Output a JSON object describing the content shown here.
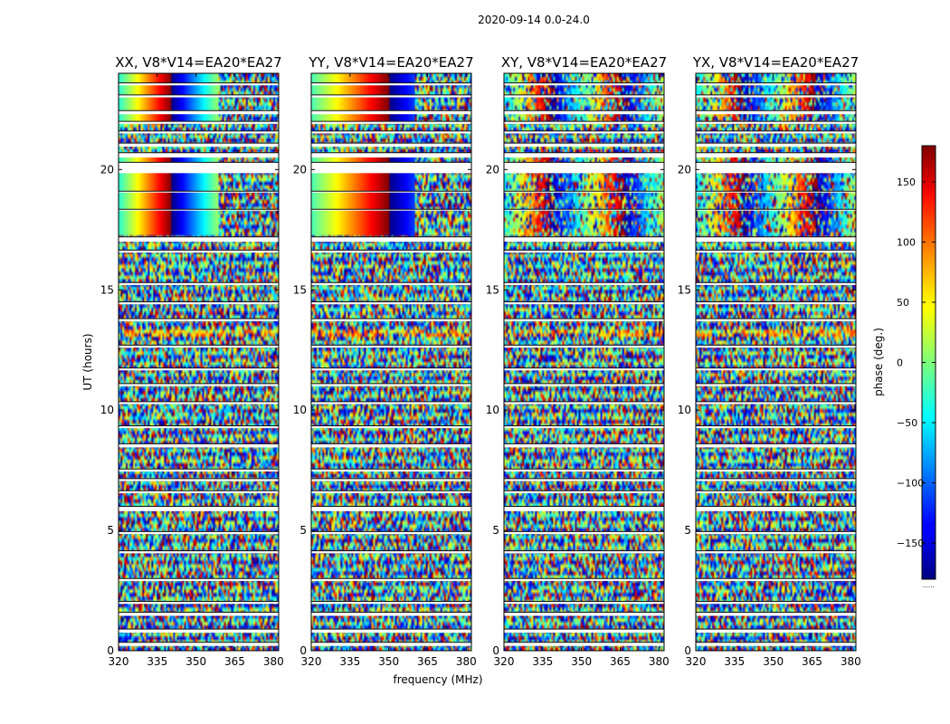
{
  "chart_data": {
    "type": "heatmap",
    "suptitle": "2020-09-14 0.0-24.0",
    "xlabel": "frequency (MHz)",
    "ylabel": "UT (hours)",
    "xlim": [
      320,
      382
    ],
    "ylim": [
      0,
      24
    ],
    "xticks": [
      320,
      335,
      350,
      365,
      380
    ],
    "yticks": [
      0,
      5,
      10,
      15,
      20
    ],
    "colorbar": {
      "label": "phase (deg.)",
      "range": [
        -180,
        180
      ],
      "ticks": [
        150,
        100,
        50,
        0,
        -50,
        -100,
        -150
      ],
      "tick_labels": [
        "150",
        "100",
        "50",
        "0",
        "−50",
        "−100",
        "−150"
      ],
      "colormap": "jet",
      "below_label": "......"
    },
    "panels": [
      {
        "title": "XX, V8*V14=EA20*EA27",
        "polarization": "XX"
      },
      {
        "title": "YY, V8*V14=EA20*EA27",
        "polarization": "YY"
      },
      {
        "title": "XY, V8*V14=EA20*EA27",
        "polarization": "XY"
      },
      {
        "title": "YX, V8*V14=EA20*EA27",
        "polarization": "YX"
      }
    ],
    "flagged_ut_bands_hours": [
      [
        0.2,
        0.35
      ],
      [
        0.75,
        0.9
      ],
      [
        1.45,
        1.6
      ],
      [
        1.95,
        2.05
      ],
      [
        2.9,
        3.0
      ],
      [
        4.05,
        4.15
      ],
      [
        4.85,
        4.95
      ],
      [
        5.8,
        6.0
      ],
      [
        6.55,
        6.65
      ],
      [
        7.05,
        7.15
      ],
      [
        7.45,
        7.55
      ],
      [
        8.45,
        8.6
      ],
      [
        9.25,
        9.35
      ],
      [
        10.25,
        10.35
      ],
      [
        11.0,
        11.1
      ],
      [
        11.65,
        11.75
      ],
      [
        12.6,
        12.7
      ],
      [
        13.7,
        13.8
      ],
      [
        14.4,
        14.5
      ],
      [
        15.2,
        15.3
      ],
      [
        16.55,
        16.65
      ],
      [
        17.0,
        17.2
      ],
      [
        18.3,
        18.35
      ],
      [
        19.05,
        19.1
      ],
      [
        19.85,
        20.3
      ],
      [
        20.5,
        20.7
      ],
      [
        20.95,
        21.1
      ],
      [
        21.5,
        21.6
      ],
      [
        21.9,
        22.0
      ],
      [
        22.3,
        22.45
      ],
      [
        23.0,
        23.1
      ],
      [
        23.5,
        23.6
      ]
    ]
  }
}
